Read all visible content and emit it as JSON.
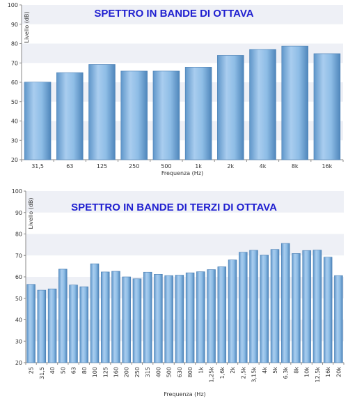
{
  "chart_data": [
    {
      "type": "bar",
      "title": "SPETTRO IN BANDE DI OTTAVA",
      "xlabel": "Frequenza (Hz)",
      "ylabel": "Livello (dB)",
      "ylim": [
        20,
        100
      ],
      "yticks": [
        "20",
        "30",
        "40",
        "50",
        "60",
        "70",
        "80",
        "90",
        "100"
      ],
      "grid": "horizontal bands",
      "bar_color": "#7fb0dc",
      "categories": [
        "31,5",
        "63",
        "125",
        "250",
        "500",
        "1k",
        "2k",
        "4k",
        "8k",
        "16k"
      ],
      "values": [
        60.1,
        65.0,
        69.2,
        65.8,
        65.8,
        67.8,
        73.9,
        77.0,
        78.7,
        74.8
      ]
    },
    {
      "type": "bar",
      "title": "SPETTRO IN BANDE DI TERZI DI OTTAVA",
      "xlabel": "Frequenza (Hz)",
      "ylabel": "Livello (dB)",
      "ylim": [
        20,
        100
      ],
      "yticks": [
        "20",
        "30",
        "40",
        "50",
        "60",
        "70",
        "80",
        "90",
        "100"
      ],
      "grid": "horizontal bands",
      "bar_color": "#7fb0dc",
      "categories": [
        "25",
        "31,5",
        "40",
        "50",
        "63",
        "80",
        "100",
        "125",
        "160",
        "200",
        "250",
        "315",
        "400",
        "500",
        "630",
        "800",
        "1k",
        "1,25k",
        "1,6k",
        "2k",
        "2,5k",
        "3,15k",
        "4k",
        "5k",
        "6,3k",
        "8k",
        "10k",
        "12,5k",
        "16k",
        "20k"
      ],
      "values": [
        56.5,
        53.8,
        54.4,
        63.6,
        56.2,
        55.4,
        66.1,
        62.3,
        62.6,
        60.0,
        59.1,
        62.2,
        61.2,
        60.6,
        60.8,
        61.9,
        62.4,
        63.4,
        64.7,
        67.9,
        71.5,
        72.4,
        70.1,
        72.8,
        75.6,
        70.9,
        72.3,
        72.5,
        69.2,
        60.6
      ]
    }
  ]
}
